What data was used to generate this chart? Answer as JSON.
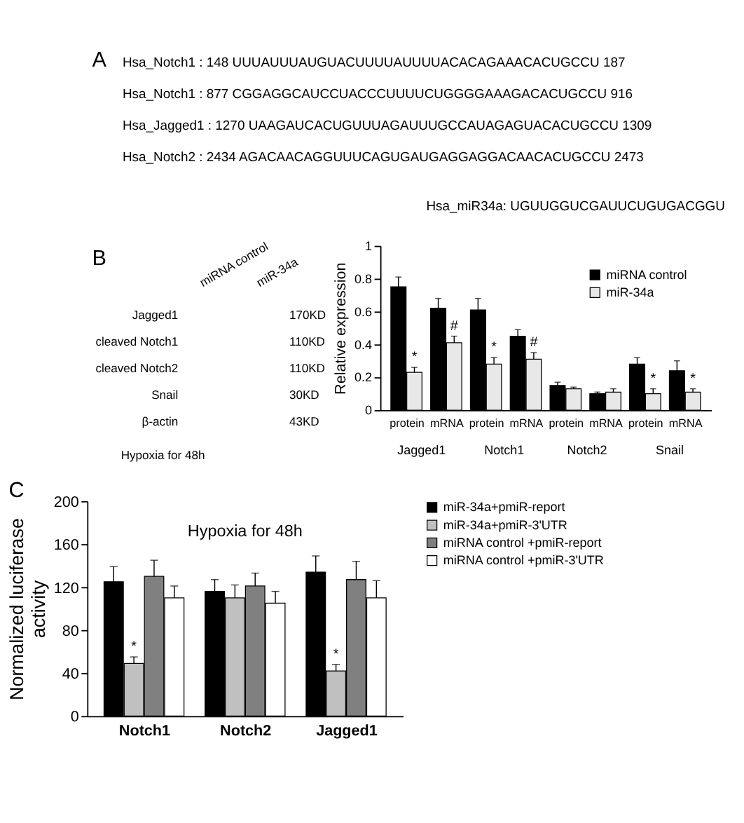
{
  "chart_data": [
    {
      "type": "other",
      "annotations": [
        "A",
        "Hsa_Notch1    :    148 UUUAUUUAUGUACUUUUAUUUUACACAGAAACACUGCCU 187",
        "Hsa_Notch1    :    877 CGGAGGCAUCCUACCCUUUUCUGGGGAAAGACACUGCCU 916",
        "Hsa_Jagged1  :   1270 UAAGAUCACUGUUUAGAUUUGCCAUAGAGUACACUGCCU 1309",
        "Hsa_Notch2    :   2434 AGACAACAGGUUUCAGUGAUGAGGAGGACAACACUGCCU 2473",
        "Hsa_miR34a: UGUUGGUCGAUUCUGUGACGGU"
      ]
    },
    {
      "type": "other",
      "categories": [
        "miRNA control",
        "miR-34a"
      ],
      "y_categories": [
        "Jagged1",
        "cleaved Notch1",
        "cleaved Notch2",
        "Snail",
        "β-actin"
      ],
      "y2_categories": [
        "170KD",
        "110KD",
        "110KD",
        "30KD",
        "43KD"
      ],
      "annotations": [
        "B",
        "Hypoxia for 48h"
      ]
    },
    {
      "type": "bar",
      "ylabel": "Relative expression",
      "categories": [
        "protein",
        "mRNA",
        "protein",
        "mRNA",
        "protein",
        "mRNA",
        "protein",
        "mRNA"
      ],
      "annotations": [
        "Jagged1",
        "Notch1",
        "Notch2",
        "Snail"
      ],
      "series": [
        {
          "name": "miRNA control",
          "color": "#000000",
          "values": [
            0.75,
            0.62,
            0.61,
            0.45,
            0.15,
            0.1,
            0.28,
            0.24
          ],
          "errors": [
            0.06,
            0.06,
            0.07,
            0.04,
            0.02,
            0.01,
            0.04,
            0.06
          ]
        },
        {
          "name": "miR-34a",
          "color": "#e8e8e8",
          "values": [
            0.23,
            0.41,
            0.28,
            0.31,
            0.13,
            0.11,
            0.1,
            0.11
          ],
          "errors": [
            0.03,
            0.04,
            0.04,
            0.04,
            0.01,
            0.02,
            0.03,
            0.02
          ],
          "value_labels": [
            "*",
            "#",
            "*",
            "#",
            null,
            null,
            "*",
            "*"
          ]
        }
      ],
      "ylim": [
        0,
        1
      ],
      "yticks": [
        0,
        0.2,
        0.4,
        0.6,
        0.8,
        1
      ],
      "legend": "top right",
      "grid": false
    },
    {
      "type": "bar",
      "title": "Hypoxia for 48h",
      "ylabel": "Normalized luciferase activity",
      "categories": [
        "Notch1",
        "Notch2",
        "Jagged1"
      ],
      "annotations": [
        "C"
      ],
      "series": [
        {
          "name": "miR-34a+pmiR-report",
          "color": "#000000",
          "values": [
            125,
            116,
            134
          ],
          "errors": [
            14,
            11,
            15
          ]
        },
        {
          "name": "miR-34a+pmiR-3'UTR",
          "color": "#c0c0c0",
          "values": [
            49,
            110,
            42
          ],
          "errors": [
            6,
            12,
            6
          ],
          "value_labels": [
            "*",
            null,
            "*"
          ]
        },
        {
          "name": "miRNA control +pmiR-report",
          "color": "#808080",
          "values": [
            130,
            121,
            127
          ],
          "errors": [
            15,
            12,
            17
          ]
        },
        {
          "name": "miRNA control +pmiR-3'UTR",
          "color": "#ffffff",
          "values": [
            110,
            105,
            110
          ],
          "errors": [
            11,
            11,
            16
          ]
        }
      ],
      "ylim": [
        0,
        200
      ],
      "yticks": [
        0,
        40,
        80,
        120,
        160,
        200
      ],
      "legend": "right",
      "grid": false
    }
  ]
}
